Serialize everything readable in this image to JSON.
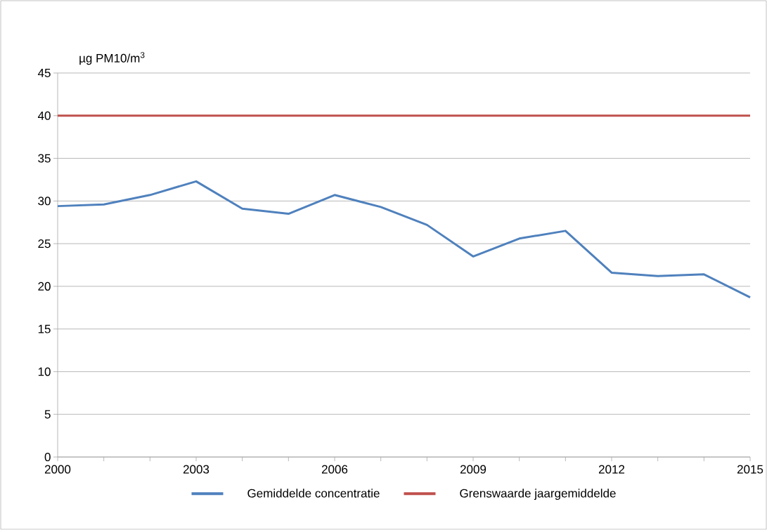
{
  "chart_data": {
    "type": "line",
    "ylabel": "µg PM10/m$^{3}$",
    "x": [
      2000,
      2001,
      2002,
      2003,
      2004,
      2005,
      2006,
      2007,
      2008,
      2009,
      2010,
      2011,
      2012,
      2013,
      2014,
      2015
    ],
    "series": [
      {
        "name": "Gemiddelde concentratie",
        "color": "#4f81bd",
        "values": [
          29.4,
          29.6,
          30.7,
          32.3,
          29.1,
          28.5,
          30.7,
          29.3,
          27.2,
          23.5,
          25.6,
          26.5,
          21.6,
          21.2,
          21.4,
          18.7
        ]
      },
      {
        "name": "Grenswaarde jaargemiddelde",
        "color": "#c0504d",
        "values": [
          40,
          40,
          40,
          40,
          40,
          40,
          40,
          40,
          40,
          40,
          40,
          40,
          40,
          40,
          40,
          40
        ]
      }
    ],
    "xlim": [
      2000,
      2015
    ],
    "xticks": [
      2000,
      {
        "value": 2001,
        "label": null
      },
      {
        "value": 2002,
        "label": null
      },
      2003,
      {
        "value": 2004,
        "label": null
      },
      {
        "value": 2005,
        "label": null
      },
      2006,
      {
        "value": 2007,
        "label": null
      },
      {
        "value": 2008,
        "label": null
      },
      2009,
      {
        "value": 2010,
        "label": null
      },
      {
        "value": 2011,
        "label": null
      },
      2012,
      {
        "value": 2013,
        "label": null
      },
      {
        "value": 2014,
        "label": null
      },
      2015
    ],
    "ylim": [
      0,
      45
    ],
    "yticks": [
      0,
      5,
      10,
      15,
      20,
      25,
      30,
      35,
      40,
      45
    ],
    "grid": "y",
    "legend": "bottom",
    "marker": "none",
    "line_style": "solid"
  }
}
